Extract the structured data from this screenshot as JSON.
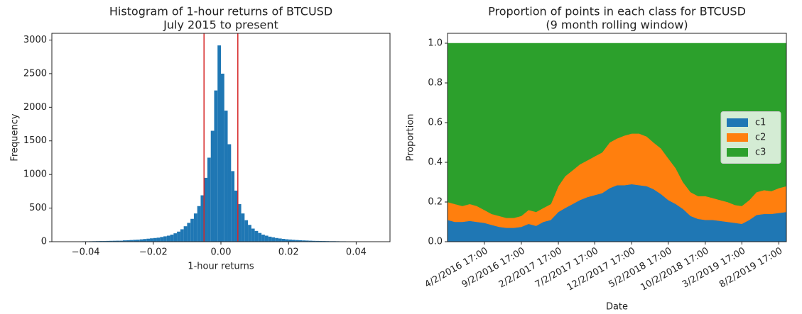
{
  "chart_data": [
    {
      "type": "histogram",
      "title": "Histogram of 1-hour returns of BTCUSD",
      "subtitle": "July 2015 to present",
      "xlabel": "1-hour returns",
      "ylabel": "Frequency",
      "color": "#1f77b4",
      "bins": [
        -0.047,
        -0.046,
        -0.045,
        -0.044,
        -0.043,
        -0.042,
        -0.041,
        -0.04,
        -0.039,
        -0.038,
        -0.037,
        -0.036,
        -0.035,
        -0.034,
        -0.033,
        -0.032,
        -0.031,
        -0.03,
        -0.029,
        -0.028,
        -0.027,
        -0.026,
        -0.025,
        -0.024,
        -0.023,
        -0.022,
        -0.021,
        -0.02,
        -0.019,
        -0.018,
        -0.017,
        -0.016,
        -0.015,
        -0.014,
        -0.013,
        -0.012,
        -0.011,
        -0.01,
        -0.009,
        -0.008,
        -0.007,
        -0.006,
        -0.005,
        -0.004,
        -0.003,
        -0.002,
        -0.001,
        0,
        0.001,
        0.002,
        0.003,
        0.004,
        0.005,
        0.006,
        0.007,
        0.008,
        0.009,
        0.01,
        0.011,
        0.012,
        0.013,
        0.014,
        0.015,
        0.016,
        0.017,
        0.018,
        0.019,
        0.02,
        0.021,
        0.022,
        0.023,
        0.024,
        0.025,
        0.026,
        0.027,
        0.028,
        0.029,
        0.03,
        0.031,
        0.032,
        0.033,
        0.034,
        0.035,
        0.036,
        0.037,
        0.038,
        0.039,
        0.04,
        0.041,
        0.042,
        0.043,
        0.044,
        0.045,
        0.046
      ],
      "counts": [
        3,
        3,
        4,
        4,
        5,
        5,
        6,
        6,
        7,
        8,
        9,
        10,
        10,
        12,
        13,
        14,
        15,
        15,
        20,
        22,
        25,
        28,
        30,
        35,
        40,
        45,
        50,
        55,
        60,
        70,
        80,
        90,
        105,
        125,
        150,
        185,
        230,
        280,
        340,
        420,
        530,
        690,
        950,
        1250,
        1650,
        2250,
        2920,
        2500,
        1950,
        1450,
        1050,
        760,
        560,
        420,
        320,
        250,
        195,
        160,
        130,
        105,
        90,
        75,
        65,
        55,
        48,
        42,
        36,
        32,
        28,
        25,
        22,
        19,
        17,
        15,
        13,
        12,
        11,
        10,
        9,
        8,
        8,
        7,
        6,
        6,
        5,
        5,
        4,
        4,
        4,
        3,
        3,
        3,
        3
      ],
      "vlines": [
        -0.005,
        0.005
      ],
      "vline_color": "#d62728",
      "xlim": [
        -0.05,
        0.05
      ],
      "xticks": [
        {
          "value": -0.04,
          "label": "−0.04"
        },
        {
          "value": -0.02,
          "label": "−0.02"
        },
        {
          "value": 0,
          "label": "0.00"
        },
        0.02,
        0.04
      ],
      "ylim": [
        0,
        3100
      ],
      "yticks": [
        0,
        500,
        1000,
        1500,
        2000,
        2500,
        3000
      ]
    },
    {
      "type": "stacked_area",
      "title": "Proportion of points in each class for BTCUSD",
      "subtitle": "(9 month rolling window)",
      "xlabel": "Date",
      "ylabel": "Proportion",
      "legend": "center right",
      "x": [
        "11/2/2015 17:00",
        "12/2/2015 17:00",
        "1/2/2016 17:00",
        "2/2/2016 17:00",
        "3/2/2016 17:00",
        "4/2/2016 17:00",
        "5/2/2016 17:00",
        "6/2/2016 17:00",
        "7/2/2016 17:00",
        "8/2/2016 17:00",
        "9/2/2016 17:00",
        "10/2/2016 17:00",
        "11/2/2016 17:00",
        "12/2/2016 17:00",
        "1/2/2017 17:00",
        "2/2/2017 17:00",
        "3/2/2017 17:00",
        "4/2/2017 17:00",
        "5/2/2017 17:00",
        "6/2/2017 17:00",
        "7/2/2017 17:00",
        "8/2/2017 17:00",
        "9/2/2017 17:00",
        "10/2/2017 17:00",
        "11/2/2017 17:00",
        "12/2/2017 17:00",
        "1/2/2018 17:00",
        "2/2/2018 17:00",
        "3/2/2018 17:00",
        "4/2/2018 17:00",
        "5/2/2018 17:00",
        "6/2/2018 17:00",
        "7/2/2018 17:00",
        "8/2/2018 17:00",
        "9/2/2018 17:00",
        "10/2/2018 17:00",
        "11/2/2018 17:00",
        "12/2/2018 17:00",
        "1/2/2019 17:00",
        "2/2/2019 17:00",
        "3/2/2019 17:00",
        "4/2/2019 17:00",
        "5/2/2019 17:00",
        "6/2/2019 17:00",
        "7/2/2019 17:00",
        "8/2/2019 17:00",
        "9/2/2019 17:00"
      ],
      "series": [
        {
          "name": "c1",
          "color": "#1f77b4",
          "values": [
            0.11,
            0.1,
            0.1,
            0.105,
            0.1,
            0.095,
            0.085,
            0.075,
            0.07,
            0.07,
            0.075,
            0.09,
            0.08,
            0.1,
            0.11,
            0.15,
            0.17,
            0.19,
            0.21,
            0.225,
            0.235,
            0.245,
            0.27,
            0.285,
            0.285,
            0.29,
            0.285,
            0.28,
            0.265,
            0.24,
            0.21,
            0.19,
            0.165,
            0.13,
            0.115,
            0.11,
            0.11,
            0.105,
            0.1,
            0.095,
            0.09,
            0.11,
            0.135,
            0.14,
            0.14,
            0.145,
            0.15
          ]
        },
        {
          "name": "c2",
          "color": "#ff7f0e",
          "values": [
            0.09,
            0.09,
            0.08,
            0.085,
            0.08,
            0.065,
            0.055,
            0.055,
            0.05,
            0.05,
            0.055,
            0.07,
            0.07,
            0.07,
            0.08,
            0.13,
            0.16,
            0.17,
            0.18,
            0.185,
            0.195,
            0.205,
            0.23,
            0.235,
            0.25,
            0.255,
            0.26,
            0.25,
            0.235,
            0.23,
            0.21,
            0.18,
            0.135,
            0.12,
            0.115,
            0.12,
            0.11,
            0.105,
            0.1,
            0.09,
            0.09,
            0.1,
            0.115,
            0.12,
            0.115,
            0.125,
            0.13
          ]
        },
        {
          "name": "c3",
          "color": "#2ca02c",
          "values": [
            0.8,
            0.81,
            0.82,
            0.81,
            0.82,
            0.84,
            0.86,
            0.87,
            0.88,
            0.88,
            0.87,
            0.84,
            0.85,
            0.83,
            0.81,
            0.72,
            0.67,
            0.64,
            0.61,
            0.59,
            0.57,
            0.55,
            0.5,
            0.48,
            0.465,
            0.455,
            0.455,
            0.47,
            0.5,
            0.53,
            0.58,
            0.63,
            0.7,
            0.75,
            0.77,
            0.77,
            0.78,
            0.79,
            0.8,
            0.815,
            0.82,
            0.79,
            0.75,
            0.74,
            0.745,
            0.73,
            0.72
          ]
        }
      ],
      "xlim": [
        "11/2/2015 17:00",
        "9/2/2019 17:00"
      ],
      "xticks": [
        "4/2/2016 17:00",
        "9/2/2016 17:00",
        "2/2/2017 17:00",
        "7/2/2017 17:00",
        "12/2/2017 17:00",
        "5/2/2018 17:00",
        "10/2/2018 17:00",
        "3/2/2019 17:00",
        "8/2/2019 17:00"
      ],
      "ylim": [
        0,
        1.05
      ],
      "yticks": [
        {
          "value": 0,
          "label": "0.0"
        },
        0.2,
        0.4,
        0.6,
        0.8,
        {
          "value": 1,
          "label": "1.0"
        }
      ]
    }
  ]
}
